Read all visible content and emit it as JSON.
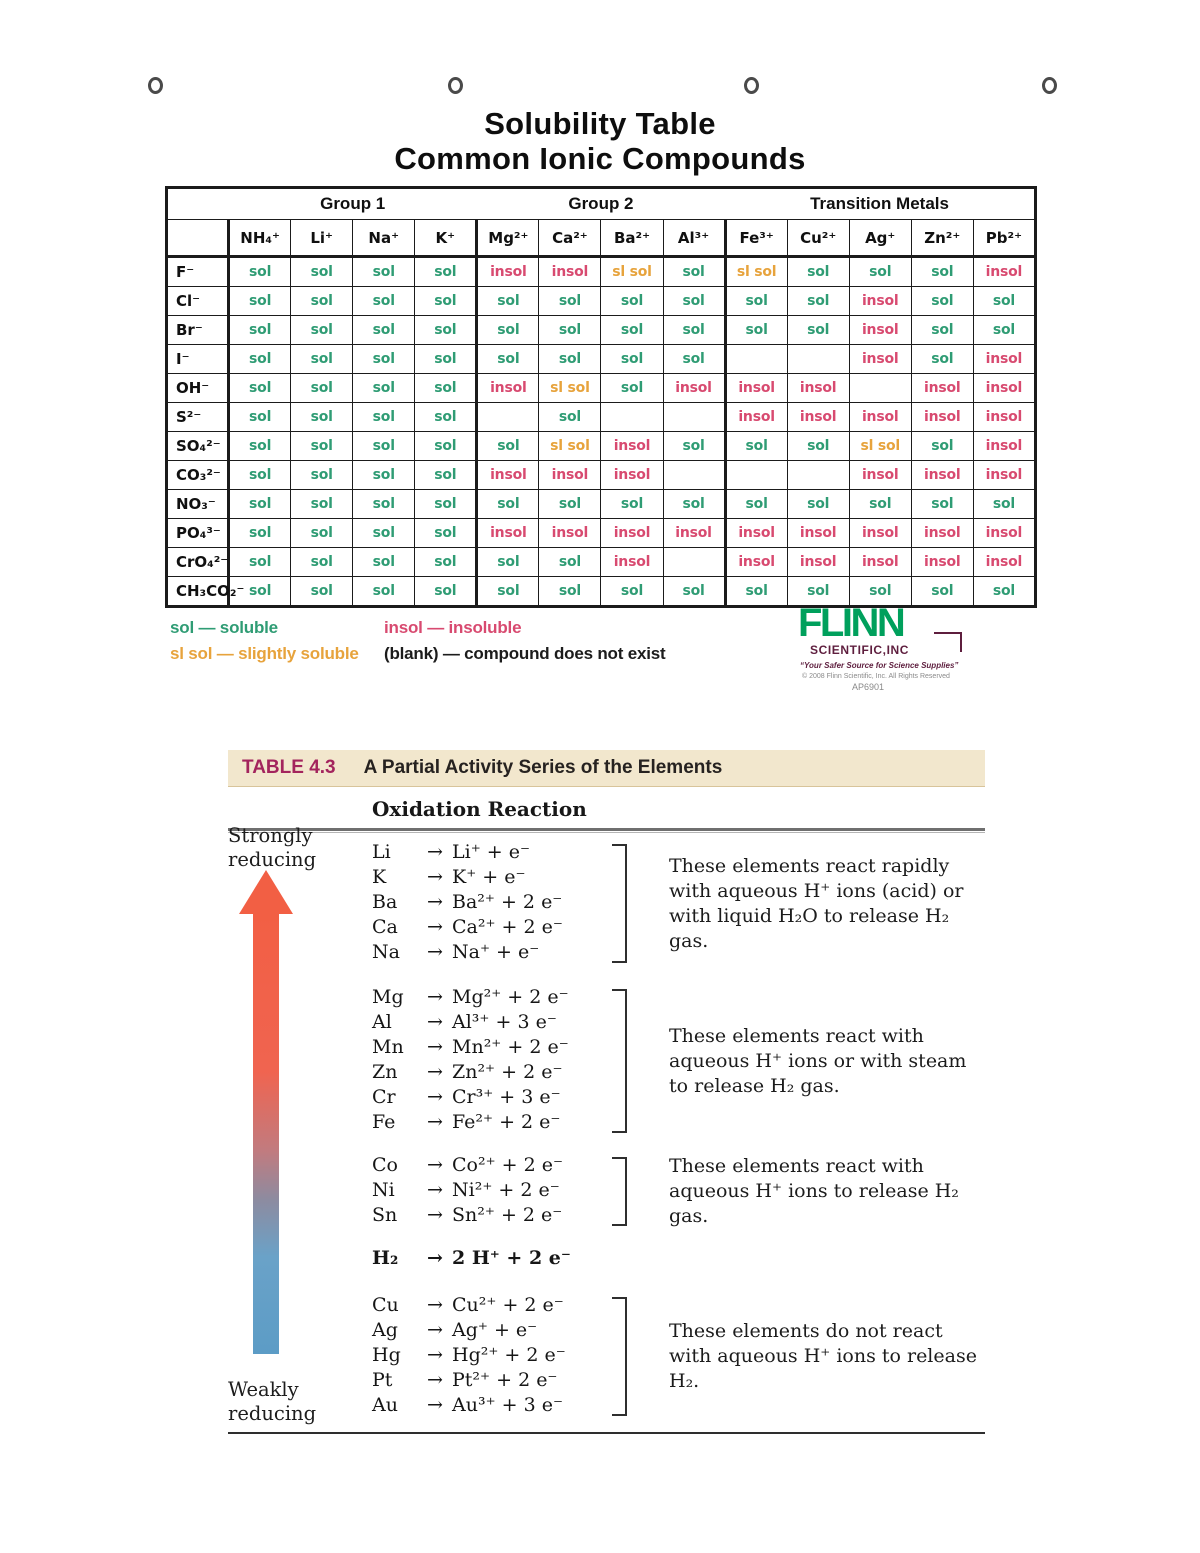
{
  "page": {
    "title_line1": "Solubility Table",
    "title_line2": "Common Ionic Compounds"
  },
  "solubility": {
    "group_headers": [
      {
        "label": "Group 1",
        "span": 4
      },
      {
        "label": "Group 2",
        "span": 4
      },
      {
        "label": "Transition Metals",
        "span": 5
      }
    ],
    "cation_headers": [
      "NH₄⁺",
      "Li⁺",
      "Na⁺",
      "K⁺",
      "Mg²⁺",
      "Ca²⁺",
      "Ba²⁺",
      "Al³⁺",
      "Fe³⁺",
      "Cu²⁺",
      "Ag⁺",
      "Zn²⁺",
      "Pb²⁺"
    ],
    "rows": [
      {
        "anion": "F⁻",
        "cells": [
          "sol",
          "sol",
          "sol",
          "sol",
          "insol",
          "insol",
          "sl sol",
          "sol",
          "sl sol",
          "sol",
          "sol",
          "sol",
          "insol"
        ]
      },
      {
        "anion": "Cl⁻",
        "cells": [
          "sol",
          "sol",
          "sol",
          "sol",
          "sol",
          "sol",
          "sol",
          "sol",
          "sol",
          "sol",
          "insol",
          "sol",
          "sol"
        ]
      },
      {
        "anion": "Br⁻",
        "cells": [
          "sol",
          "sol",
          "sol",
          "sol",
          "sol",
          "sol",
          "sol",
          "sol",
          "sol",
          "sol",
          "insol",
          "sol",
          "sol"
        ]
      },
      {
        "anion": "I⁻",
        "cells": [
          "sol",
          "sol",
          "sol",
          "sol",
          "sol",
          "sol",
          "sol",
          "sol",
          "",
          "",
          "insol",
          "sol",
          "insol"
        ]
      },
      {
        "anion": "OH⁻",
        "cells": [
          "sol",
          "sol",
          "sol",
          "sol",
          "insol",
          "sl sol",
          "sol",
          "insol",
          "insol",
          "insol",
          "",
          "insol",
          "insol"
        ]
      },
      {
        "anion": "S²⁻",
        "cells": [
          "sol",
          "sol",
          "sol",
          "sol",
          "",
          "sol",
          "",
          "",
          "insol",
          "insol",
          "insol",
          "insol",
          "insol"
        ]
      },
      {
        "anion": "SO₄²⁻",
        "cells": [
          "sol",
          "sol",
          "sol",
          "sol",
          "sol",
          "sl sol",
          "insol",
          "sol",
          "sol",
          "sol",
          "sl sol",
          "sol",
          "insol"
        ]
      },
      {
        "anion": "CO₃²⁻",
        "cells": [
          "sol",
          "sol",
          "sol",
          "sol",
          "insol",
          "insol",
          "insol",
          "",
          "",
          "",
          "insol",
          "insol",
          "insol"
        ]
      },
      {
        "anion": "NO₃⁻",
        "cells": [
          "sol",
          "sol",
          "sol",
          "sol",
          "sol",
          "sol",
          "sol",
          "sol",
          "sol",
          "sol",
          "sol",
          "sol",
          "sol"
        ]
      },
      {
        "anion": "PO₄³⁻",
        "cells": [
          "sol",
          "sol",
          "sol",
          "sol",
          "insol",
          "insol",
          "insol",
          "insol",
          "insol",
          "insol",
          "insol",
          "insol",
          "insol"
        ]
      },
      {
        "anion": "CrO₄²⁻",
        "cells": [
          "sol",
          "sol",
          "sol",
          "sol",
          "sol",
          "sol",
          "insol",
          "",
          "insol",
          "insol",
          "insol",
          "insol",
          "insol"
        ]
      },
      {
        "anion": "CH₃CO₂⁻",
        "cells": [
          "sol",
          "sol",
          "sol",
          "sol",
          "sol",
          "sol",
          "sol",
          "sol",
          "sol",
          "sol",
          "sol",
          "sol",
          "sol"
        ]
      }
    ],
    "status_colors": {
      "sol": "#2f9c74",
      "insol": "#d84a70",
      "sl sol": "#e7a33c"
    },
    "legend": [
      {
        "text": "sol — soluble",
        "color": "#2f9c74"
      },
      {
        "text": "insol — insoluble",
        "color": "#d84a70"
      },
      {
        "text": "sl sol — slightly soluble",
        "color": "#e7a33c"
      },
      {
        "text": "(blank) — compound does not exist",
        "color": "#1c1c1c"
      }
    ]
  },
  "logo": {
    "name": "FLINN",
    "sub": "SCIENTIFIC,INC",
    "tagline": "“Your Safer Source for Science Supplies”",
    "copyright": "© 2008 Flinn Scientific, Inc. All Rights Reserved",
    "code": "AP6901",
    "brand_green": "#00a05c",
    "brand_maroon": "#5e1e3e"
  },
  "activity": {
    "table_label": "TABLE 4.3",
    "table_title": "A Partial Activity Series of the Elements",
    "column_header": "Oxidation Reaction",
    "strong_label_1": "Strongly",
    "strong_label_2": "reducing",
    "weak_label_1": "Weakly",
    "weak_label_2": "reducing",
    "arrow_glyph": "→",
    "arrow_top_color": "#f25f44",
    "arrow_bottom_color": "#5c9cc6",
    "groups": [
      {
        "reactions": [
          {
            "el": "Li",
            "prod": "Li⁺ + e⁻"
          },
          {
            "el": "K",
            "prod": "K⁺ + e⁻"
          },
          {
            "el": "Ba",
            "prod": "Ba²⁺ + 2 e⁻"
          },
          {
            "el": "Ca",
            "prod": "Ca²⁺ + 2 e⁻"
          },
          {
            "el": "Na",
            "prod": "Na⁺ + e⁻"
          }
        ],
        "note": "These elements react rapidly with aqueous H⁺ ions (acid) or with liquid H₂O to release H₂ gas."
      },
      {
        "reactions": [
          {
            "el": "Mg",
            "prod": "Mg²⁺ + 2 e⁻"
          },
          {
            "el": "Al",
            "prod": "Al³⁺ + 3 e⁻"
          },
          {
            "el": "Mn",
            "prod": "Mn²⁺ + 2 e⁻"
          },
          {
            "el": "Zn",
            "prod": "Zn²⁺ + 2 e⁻"
          },
          {
            "el": "Cr",
            "prod": "Cr³⁺ + 3 e⁻"
          },
          {
            "el": "Fe",
            "prod": "Fe²⁺ + 2 e⁻"
          }
        ],
        "note": "These elements react with aqueous H⁺ ions or with steam to release H₂ gas."
      },
      {
        "reactions": [
          {
            "el": "Co",
            "prod": "Co²⁺ + 2 e⁻"
          },
          {
            "el": "Ni",
            "prod": "Ni²⁺ + 2 e⁻"
          },
          {
            "el": "Sn",
            "prod": "Sn²⁺ + 2 e⁻"
          }
        ],
        "note": "These elements react with aqueous H⁺ ions to release H₂ gas."
      },
      {
        "reactions": [
          {
            "el": "Cu",
            "prod": "Cu²⁺ + 2 e⁻"
          },
          {
            "el": "Ag",
            "prod": "Ag⁺ + e⁻"
          },
          {
            "el": "Hg",
            "prod": "Hg²⁺ + 2 e⁻"
          },
          {
            "el": "Pt",
            "prod": "Pt²⁺ + 2 e⁻"
          },
          {
            "el": "Au",
            "prod": "Au³⁺ + 3 e⁻"
          }
        ],
        "note": "These elements do not react with aqueous H⁺ ions to release H₂."
      }
    ],
    "h2_reaction": {
      "el": "H₂",
      "prod": "2 H⁺ + 2 e⁻"
    }
  }
}
